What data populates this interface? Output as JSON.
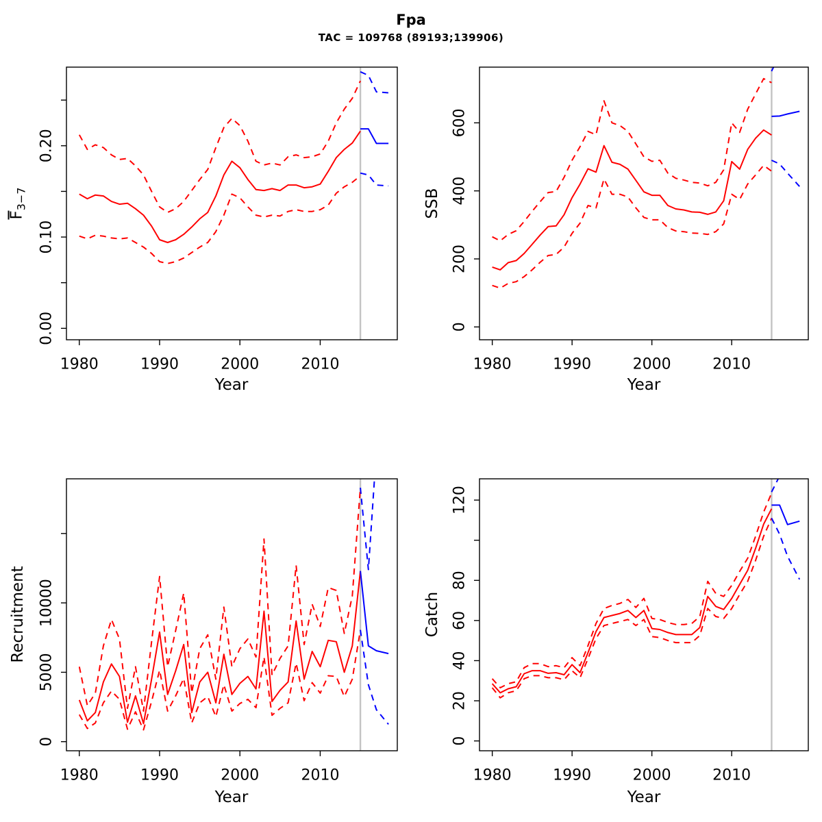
{
  "header": {
    "title": "Fpa",
    "subtitle": "TAC = 109768 (89193;139906)"
  },
  "colors": {
    "historic": "#ff0000",
    "forecast": "#0000ff",
    "divider": "#c3c3c3",
    "axis": "#000000"
  },
  "divider_year": 2015,
  "chart_data": [
    {
      "type": "line",
      "id": "f",
      "ylabel": "F",
      "ylabel_sub": "3−7",
      "xlabel": "Year",
      "xlim": [
        1978.4,
        2019.6
      ],
      "ylim": [
        -0.0125,
        0.2861
      ],
      "xticks": [
        1980,
        1990,
        2000,
        2010
      ],
      "yticks": {
        "values": [
          0,
          0.05,
          0.1,
          0.15,
          0.2,
          0.25
        ],
        "labels": [
          "0.00",
          "",
          "0.10",
          "",
          "0.20",
          ""
        ]
      },
      "x": [
        1980,
        1981,
        1982,
        1983,
        1984,
        1985,
        1986,
        1987,
        1988,
        1989,
        1990,
        1991,
        1992,
        1993,
        1994,
        1995,
        1996,
        1997,
        1998,
        1999,
        2000,
        2001,
        2002,
        2003,
        2004,
        2005,
        2006,
        2007,
        2008,
        2009,
        2010,
        2011,
        2012,
        2013,
        2014,
        2015
      ],
      "forecast_x": [
        2015,
        2016,
        2017,
        2018.5
      ],
      "series": [
        {
          "name": "median",
          "color": "red",
          "style": "solid",
          "values": [
            0.147,
            0.142,
            0.146,
            0.145,
            0.139,
            0.136,
            0.137,
            0.131,
            0.124,
            0.112,
            0.097,
            0.094,
            0.097,
            0.103,
            0.111,
            0.12,
            0.127,
            0.145,
            0.168,
            0.183,
            0.176,
            0.163,
            0.152,
            0.151,
            0.153,
            0.151,
            0.157,
            0.157,
            0.154,
            0.155,
            0.158,
            0.172,
            0.187,
            0.196,
            0.203,
            0.216
          ]
        },
        {
          "name": "upper-ci",
          "color": "red",
          "style": "dashed",
          "values": [
            0.212,
            0.196,
            0.201,
            0.198,
            0.19,
            0.185,
            0.186,
            0.178,
            0.168,
            0.15,
            0.133,
            0.127,
            0.131,
            0.139,
            0.151,
            0.163,
            0.174,
            0.198,
            0.22,
            0.23,
            0.222,
            0.205,
            0.183,
            0.179,
            0.181,
            0.179,
            0.188,
            0.19,
            0.187,
            0.188,
            0.191,
            0.205,
            0.225,
            0.24,
            0.252,
            0.271
          ]
        },
        {
          "name": "lower-ci",
          "color": "red",
          "style": "dashed",
          "values": [
            0.101,
            0.098,
            0.102,
            0.101,
            0.099,
            0.098,
            0.099,
            0.094,
            0.089,
            0.082,
            0.073,
            0.071,
            0.073,
            0.077,
            0.083,
            0.089,
            0.094,
            0.106,
            0.124,
            0.147,
            0.143,
            0.133,
            0.124,
            0.122,
            0.124,
            0.123,
            0.128,
            0.13,
            0.128,
            0.128,
            0.13,
            0.135,
            0.148,
            0.155,
            0.16,
            0.167
          ]
        },
        {
          "name": "forecast-median",
          "color": "blue",
          "style": "solid",
          "forecast": true,
          "values": [
            0.2185,
            0.2185,
            0.2025,
            0.2025
          ]
        },
        {
          "name": "forecast-upper",
          "color": "blue",
          "style": "dashed",
          "forecast": true,
          "values": [
            0.281,
            0.277,
            0.259,
            0.258
          ]
        },
        {
          "name": "forecast-lower",
          "color": "blue",
          "style": "dashed",
          "forecast": true,
          "values": [
            0.17,
            0.168,
            0.157,
            0.156
          ]
        }
      ]
    },
    {
      "type": "line",
      "id": "ssb",
      "ylabel": "SSB",
      "xlabel": "Year",
      "xlim": [
        1978.4,
        2019.6
      ],
      "ylim": [
        -37.7,
        763.8
      ],
      "xticks": [
        1980,
        1990,
        2000,
        2010
      ],
      "yticks": {
        "values": [
          0,
          200,
          400,
          600
        ],
        "labels": [
          "0",
          "200",
          "400",
          "600"
        ]
      },
      "x": [
        1980,
        1981,
        1982,
        1983,
        1984,
        1985,
        1986,
        1987,
        1988,
        1989,
        1990,
        1991,
        1992,
        1993,
        1994,
        1995,
        1996,
        1997,
        1998,
        1999,
        2000,
        2001,
        2002,
        2003,
        2004,
        2005,
        2006,
        2007,
        2008,
        2009,
        2010,
        2011,
        2012,
        2013,
        2014,
        2015
      ],
      "forecast_x": [
        2015,
        2016,
        2017,
        2018.5
      ],
      "series": [
        {
          "name": "median",
          "color": "red",
          "style": "solid",
          "values": [
            176,
            168,
            189,
            195,
            216,
            243,
            270,
            295,
            297,
            330,
            380,
            420,
            465,
            455,
            533,
            484,
            478,
            464,
            431,
            397,
            387,
            387,
            357,
            347,
            344,
            338,
            337,
            331,
            338,
            371,
            486,
            464,
            522,
            555,
            579,
            564
          ]
        },
        {
          "name": "upper-ci",
          "color": "red",
          "style": "dashed",
          "values": [
            265,
            253,
            272,
            283,
            310,
            340,
            368,
            395,
            398,
            440,
            490,
            530,
            575,
            565,
            665,
            600,
            592,
            575,
            538,
            500,
            487,
            490,
            452,
            437,
            432,
            425,
            423,
            415,
            425,
            462,
            600,
            572,
            640,
            685,
            730,
            718
          ]
        },
        {
          "name": "lower-ci",
          "color": "red",
          "style": "dashed",
          "values": [
            122,
            114,
            128,
            133,
            148,
            168,
            190,
            210,
            213,
            235,
            275,
            305,
            357,
            350,
            435,
            390,
            390,
            382,
            350,
            322,
            315,
            315,
            292,
            282,
            280,
            276,
            275,
            272,
            280,
            303,
            390,
            375,
            420,
            447,
            475,
            458
          ]
        },
        {
          "name": "forecast-median",
          "color": "blue",
          "style": "solid",
          "forecast": true,
          "values": [
            619,
            620,
            626,
            634
          ]
        },
        {
          "name": "forecast-upper",
          "color": "blue",
          "style": "dashed",
          "forecast": true,
          "values": [
            752,
            800,
            850,
            890
          ]
        },
        {
          "name": "forecast-lower",
          "color": "blue",
          "style": "dashed",
          "forecast": true,
          "values": [
            490,
            479,
            452,
            413
          ]
        }
      ]
    },
    {
      "type": "line",
      "id": "recruitment",
      "ylabel": "Recruitment",
      "xlabel": "Year",
      "xlim": [
        1978.4,
        2019.6
      ],
      "ylim": [
        -656,
        18940
      ],
      "xticks": [
        1980,
        1990,
        2000,
        2010
      ],
      "yticks": {
        "values": [
          0,
          5000,
          10000,
          15000
        ],
        "labels": [
          "0",
          "5000",
          "10000",
          ""
        ]
      },
      "x": [
        1980,
        1981,
        1982,
        1983,
        1984,
        1985,
        1986,
        1987,
        1988,
        1989,
        1990,
        1991,
        1992,
        1993,
        1994,
        1995,
        1996,
        1997,
        1998,
        1999,
        2000,
        2001,
        2002,
        2003,
        2004,
        2005,
        2006,
        2007,
        2008,
        2009,
        2010,
        2011,
        2012,
        2013,
        2014,
        2015
      ],
      "forecast_x": [
        2015,
        2016,
        2017,
        2018.5
      ],
      "series": [
        {
          "name": "median",
          "color": "red",
          "style": "solid",
          "values": [
            3000,
            1500,
            2100,
            4300,
            5600,
            4700,
            1400,
            3300,
            1300,
            4500,
            7900,
            3400,
            5100,
            7000,
            2100,
            4300,
            5000,
            2800,
            6300,
            3400,
            4200,
            4700,
            3800,
            9400,
            2900,
            3700,
            4300,
            8700,
            4500,
            6500,
            5400,
            7300,
            7200,
            5000,
            6900,
            12300
          ]
        },
        {
          "name": "upper-ci",
          "color": "red",
          "style": "dashed",
          "values": [
            5400,
            2600,
            3500,
            6900,
            8800,
            7400,
            2400,
            5400,
            2200,
            7200,
            11900,
            5400,
            8000,
            10700,
            3500,
            6700,
            7700,
            4500,
            9700,
            5400,
            6700,
            7400,
            6100,
            14600,
            4800,
            6000,
            6900,
            12700,
            7000,
            9900,
            8300,
            11100,
            10900,
            7800,
            10500,
            18300
          ]
        },
        {
          "name": "lower-ci",
          "color": "red",
          "style": "dashed",
          "values": [
            1950,
            950,
            1350,
            2800,
            3650,
            3050,
            900,
            2150,
            850,
            2900,
            5150,
            2200,
            3300,
            4550,
            1350,
            2800,
            3250,
            1800,
            4100,
            2200,
            2750,
            3050,
            2450,
            6100,
            1900,
            2400,
            2800,
            5650,
            2950,
            4250,
            3500,
            4750,
            4700,
            3250,
            4500,
            8050
          ]
        },
        {
          "name": "forecast-median",
          "color": "blue",
          "style": "solid",
          "forecast": true,
          "values": [
            12300,
            6900,
            6550,
            6350
          ]
        },
        {
          "name": "forecast-upper",
          "color": "blue",
          "style": "dashed",
          "forecast": true,
          "values": [
            18300,
            12400,
            21000,
            23000
          ]
        },
        {
          "name": "forecast-lower",
          "color": "blue",
          "style": "dashed",
          "forecast": true,
          "values": [
            8050,
            4100,
            2300,
            1250
          ]
        }
      ]
    },
    {
      "type": "line",
      "id": "catch",
      "ylabel": "Catch",
      "xlabel": "Year",
      "xlim": [
        1978.4,
        2019.6
      ],
      "ylim": [
        -4.9,
        130.6
      ],
      "xticks": [
        1980,
        1990,
        2000,
        2010
      ],
      "yticks": {
        "values": [
          0,
          20,
          40,
          60,
          80,
          100,
          120
        ],
        "labels": [
          "0",
          "20",
          "40",
          "60",
          "80",
          "",
          "120"
        ]
      },
      "x": [
        1980,
        1981,
        1982,
        1983,
        1984,
        1985,
        1986,
        1987,
        1988,
        1989,
        1990,
        1991,
        1992,
        1993,
        1994,
        1995,
        1996,
        1997,
        1998,
        1999,
        2000,
        2001,
        2002,
        2003,
        2004,
        2005,
        2006,
        2007,
        2008,
        2009,
        2010,
        2011,
        2012,
        2013,
        2014,
        2015
      ],
      "forecast_x": [
        2015,
        2016,
        2017,
        2018.5
      ],
      "series": [
        {
          "name": "median",
          "color": "red",
          "style": "solid",
          "values": [
            28.5,
            24,
            26,
            27,
            33.5,
            35,
            35,
            33.7,
            34,
            33,
            38,
            34,
            44,
            54.5,
            61.5,
            62.5,
            63.5,
            65,
            61.5,
            65,
            56,
            55.5,
            54,
            53,
            53,
            53,
            56.5,
            72,
            67,
            65.5,
            71,
            78,
            85,
            96,
            108,
            115.7
          ]
        },
        {
          "name": "upper-ci",
          "color": "red",
          "style": "dashed",
          "values": [
            31,
            26.5,
            28.5,
            29.5,
            36.5,
            38.5,
            38.5,
            37,
            37.5,
            36.5,
            41.5,
            37.5,
            47.5,
            58.5,
            66,
            67.5,
            68.5,
            70.5,
            66.5,
            71,
            61,
            60.5,
            59,
            58,
            58,
            58.5,
            62,
            79.5,
            73.5,
            72,
            77.5,
            84.5,
            91,
            102,
            114,
            123.5
          ]
        },
        {
          "name": "lower-ci",
          "color": "red",
          "style": "dashed",
          "values": [
            26.5,
            21.5,
            24,
            25,
            31,
            32.5,
            32.5,
            31.5,
            31.5,
            30.5,
            35,
            31.5,
            41,
            51,
            57.5,
            58.5,
            59.5,
            60.5,
            57.5,
            60.5,
            52,
            51.5,
            50,
            49,
            49,
            49,
            52.5,
            66,
            62,
            61,
            66,
            73,
            79.5,
            90,
            102,
            111
          ]
        },
        {
          "name": "forecast-median",
          "color": "blue",
          "style": "solid",
          "forecast": true,
          "values": [
            117.5,
            117.5,
            107.8,
            109.5
          ]
        },
        {
          "name": "forecast-upper",
          "color": "blue",
          "style": "dashed",
          "forecast": true,
          "values": [
            124,
            132,
            134,
            135
          ]
        },
        {
          "name": "forecast-lower",
          "color": "blue",
          "style": "dashed",
          "forecast": true,
          "values": [
            111,
            103,
            92,
            80.5
          ]
        }
      ]
    }
  ]
}
